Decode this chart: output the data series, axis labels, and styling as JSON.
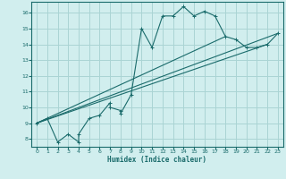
{
  "title": "",
  "xlabel": "Humidex (Indice chaleur)",
  "ylabel": "",
  "bg_color": "#d1eeee",
  "line_color": "#1a6b6b",
  "grid_color": "#aad4d4",
  "xlim": [
    -0.5,
    23.5
  ],
  "ylim": [
    7.5,
    16.7
  ],
  "xticks": [
    0,
    1,
    2,
    3,
    4,
    5,
    6,
    7,
    8,
    9,
    10,
    11,
    12,
    13,
    14,
    15,
    16,
    17,
    18,
    19,
    20,
    21,
    22,
    23
  ],
  "yticks": [
    8,
    9,
    10,
    11,
    12,
    13,
    14,
    15,
    16
  ],
  "series": [
    [
      0,
      9.0
    ],
    [
      1,
      9.3
    ],
    [
      2,
      7.8
    ],
    [
      3,
      8.3
    ],
    [
      4,
      7.8
    ],
    [
      4,
      8.3
    ],
    [
      5,
      9.3
    ],
    [
      6,
      9.5
    ],
    [
      7,
      10.3
    ],
    [
      7,
      10.0
    ],
    [
      8,
      9.8
    ],
    [
      8,
      9.6
    ],
    [
      9,
      10.8
    ],
    [
      10,
      15.0
    ],
    [
      11,
      13.8
    ],
    [
      12,
      15.8
    ],
    [
      13,
      15.8
    ],
    [
      14,
      16.4
    ],
    [
      15,
      15.8
    ],
    [
      16,
      16.1
    ],
    [
      17,
      15.8
    ],
    [
      18,
      14.5
    ],
    [
      19,
      14.3
    ],
    [
      20,
      13.8
    ],
    [
      21,
      13.8
    ],
    [
      22,
      14.0
    ],
    [
      23,
      14.7
    ]
  ],
  "line2": [
    [
      0,
      9.0
    ],
    [
      23,
      14.7
    ]
  ],
  "line3": [
    [
      0,
      9.0
    ],
    [
      18,
      14.5
    ]
  ],
  "line4": [
    [
      0,
      9.0
    ],
    [
      22,
      14.0
    ]
  ]
}
